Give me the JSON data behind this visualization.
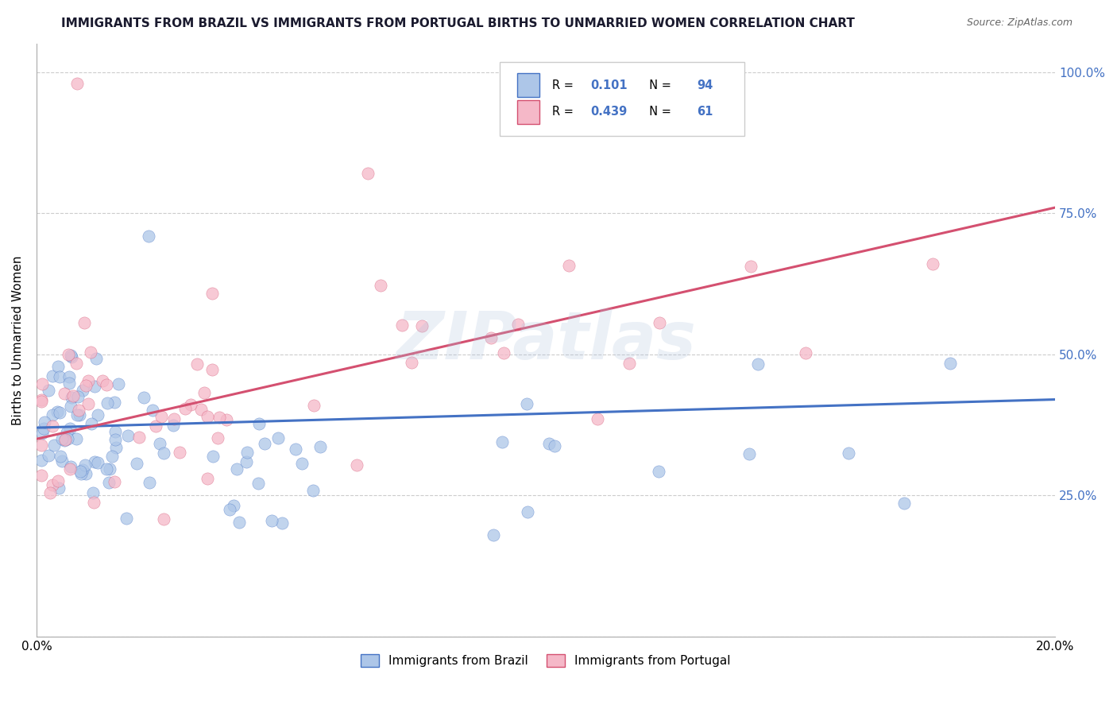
{
  "title": "IMMIGRANTS FROM BRAZIL VS IMMIGRANTS FROM PORTUGAL BIRTHS TO UNMARRIED WOMEN CORRELATION CHART",
  "source_text": "Source: ZipAtlas.com",
  "ylabel": "Births to Unmarried Women",
  "xmin": 0.0,
  "xmax": 0.2,
  "ymin": 0.0,
  "ymax": 1.05,
  "ytick_labels": [
    "",
    "25.0%",
    "50.0%",
    "75.0%",
    "100.0%"
  ],
  "ytick_values": [
    0.0,
    0.25,
    0.5,
    0.75,
    1.0
  ],
  "xtick_values": [
    0.0,
    0.05,
    0.1,
    0.15,
    0.2
  ],
  "legend_labels_bottom": [
    "Immigrants from Brazil",
    "Immigrants from Portugal"
  ],
  "legend_r_brazil": "0.101",
  "legend_n_brazil": "94",
  "legend_r_portugal": "0.439",
  "legend_n_portugal": "61",
  "brazil_color": "#adc6e8",
  "portugal_color": "#f5b8c8",
  "brazil_line_color": "#4472c4",
  "portugal_line_color": "#d45070",
  "watermark": "ZIPatlas",
  "brazil_line_x0": 0.0,
  "brazil_line_y0": 0.37,
  "brazil_line_x1": 0.2,
  "brazil_line_y1": 0.42,
  "portugal_line_x0": 0.0,
  "portugal_line_y0": 0.35,
  "portugal_line_x1": 0.2,
  "portugal_line_y1": 0.76
}
